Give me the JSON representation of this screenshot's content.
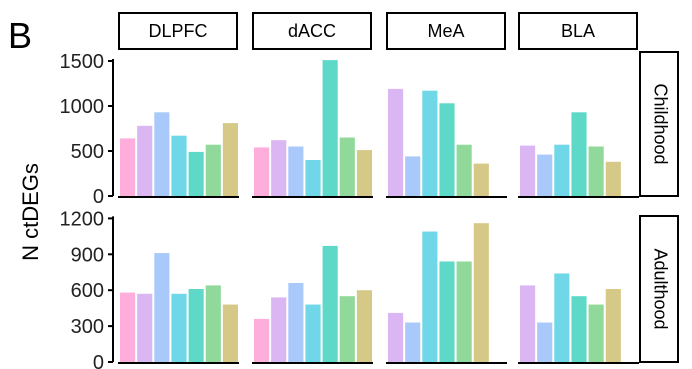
{
  "panel_label": "B",
  "chart_data": {
    "type": "bar",
    "ylabel": "N ctDEGs",
    "columns": [
      "DLPFC",
      "dACC",
      "MeA",
      "BLA"
    ],
    "rows": [
      {
        "label": "Childhood",
        "ylim": [
          0,
          1600
        ],
        "yticks": [
          "0",
          "500",
          "1000",
          "1500"
        ],
        "yticks_values": [
          0,
          500,
          1000,
          1500
        ],
        "values": {
          "DLPFC": [
            640,
            780,
            930,
            670,
            490,
            570,
            810
          ],
          "dACC": [
            540,
            620,
            550,
            400,
            1510,
            650,
            510
          ],
          "MeA": [
            1190,
            440,
            1170,
            1030,
            570,
            360
          ],
          "BLA": [
            560,
            460,
            570,
            930,
            550,
            380
          ]
        },
        "colors": {
          "DLPFC": [
            "#ffaedb",
            "#dab6f3",
            "#a9c9fb",
            "#6fd7e8",
            "#5fd9c7",
            "#90d99b",
            "#d6c987"
          ],
          "dACC": [
            "#ffaedb",
            "#dab6f3",
            "#a9c9fb",
            "#6fd7e8",
            "#5fd9c7",
            "#90d99b",
            "#d6c987"
          ],
          "MeA": [
            "#dab6f3",
            "#a9c9fb",
            "#6fd7e8",
            "#5fd9c7",
            "#90d99b",
            "#d6c987"
          ],
          "BLA": [
            "#dab6f3",
            "#a9c9fb",
            "#6fd7e8",
            "#5fd9c7",
            "#90d99b",
            "#d6c987"
          ]
        }
      },
      {
        "label": "Adulthood",
        "ylim": [
          0,
          1220
        ],
        "yticks": [
          "0",
          "300",
          "600",
          "900",
          "1200"
        ],
        "yticks_values": [
          0,
          300,
          600,
          900,
          1200
        ],
        "values": {
          "DLPFC": [
            580,
            570,
            910,
            570,
            610,
            640,
            480
          ],
          "dACC": [
            360,
            540,
            660,
            480,
            970,
            550,
            600
          ],
          "MeA": [
            410,
            330,
            1090,
            840,
            840,
            1160
          ],
          "BLA": [
            640,
            330,
            740,
            550,
            480,
            610
          ]
        },
        "colors": {
          "DLPFC": [
            "#ffaedb",
            "#dab6f3",
            "#a9c9fb",
            "#6fd7e8",
            "#5fd9c7",
            "#90d99b",
            "#d6c987"
          ],
          "dACC": [
            "#ffaedb",
            "#dab6f3",
            "#a9c9fb",
            "#6fd7e8",
            "#5fd9c7",
            "#90d99b",
            "#d6c987"
          ],
          "MeA": [
            "#dab6f3",
            "#a9c9fb",
            "#6fd7e8",
            "#5fd9c7",
            "#90d99b",
            "#d6c987"
          ],
          "BLA": [
            "#dab6f3",
            "#a9c9fb",
            "#6fd7e8",
            "#5fd9c7",
            "#90d99b",
            "#d6c987"
          ]
        }
      }
    ],
    "grid": false,
    "legend": "none"
  }
}
